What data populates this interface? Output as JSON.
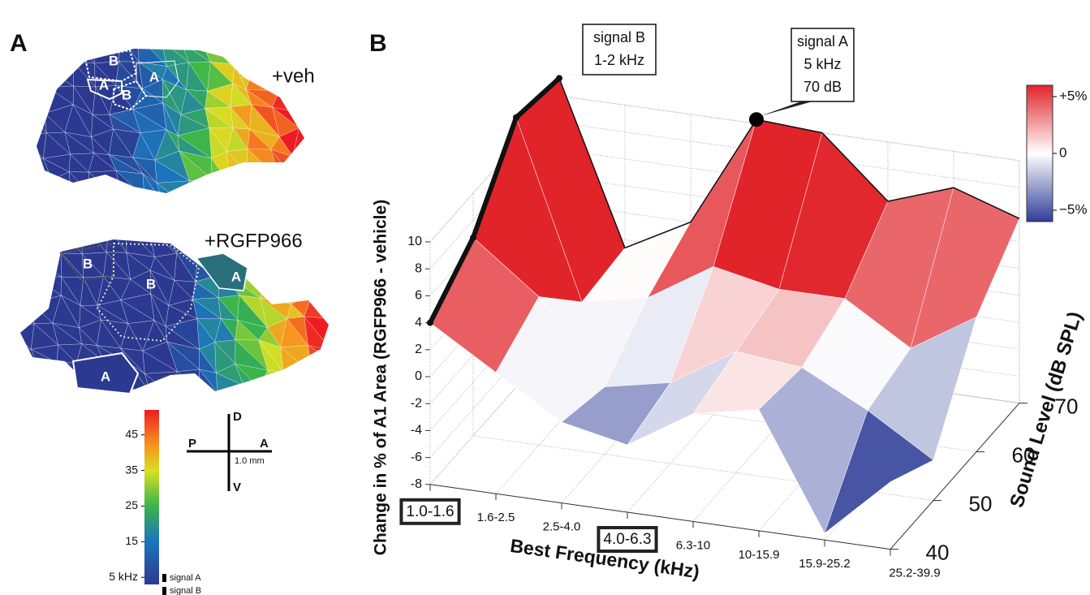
{
  "panel_a": {
    "label": "A",
    "maps": [
      {
        "title": "+veh",
        "regions": [
          "B",
          "A",
          "B",
          "A"
        ]
      },
      {
        "title": "+RGFP966",
        "regions": [
          "B",
          "B",
          "A",
          "A"
        ]
      }
    ],
    "colorbar": {
      "lim": [
        3,
        52
      ],
      "ticks": [
        45,
        35,
        25,
        15,
        {
          "value": 5,
          "label": "5 kHz"
        }
      ],
      "legend": [
        "signal A",
        "signal B"
      ]
    },
    "compass": {
      "dorsal": "D",
      "ventral": "V",
      "posterior": "P",
      "anterior": "A",
      "scale": "1.0 mm"
    }
  },
  "chart_data": {
    "type": "surface3d",
    "panel_label": "B",
    "xlabel": "Best Frequency (kHz)",
    "ylabel": "Sound Level (dB SPL)",
    "zlabel": "Change in % of A1 Area (RGFP966 - vehicle)",
    "categories": [
      "1.0-1.6",
      "1.6-2.5",
      "2.5-4.0",
      "4.0-6.3",
      "6.3-10",
      "10-15.9",
      "15.9-25.2",
      "25.2-39.9"
    ],
    "highlighted_categories": [
      0,
      3
    ],
    "y": [
      40,
      50,
      60,
      70
    ],
    "ylim": [
      40,
      70
    ],
    "yticks": [
      40,
      50,
      60,
      70
    ],
    "zlim": [
      -8,
      10
    ],
    "zticks": [
      -8,
      -6,
      -4,
      -2,
      0,
      2,
      4,
      6,
      8,
      10
    ],
    "values": [
      [
        4,
        1,
        -2,
        -3,
        0,
        1,
        -7.5,
        -3
      ],
      [
        6.7,
        3,
        -3,
        -2,
        1,
        0.5,
        -2,
        -5
      ],
      [
        12,
        -1,
        0,
        3,
        2,
        2,
        -1,
        2
      ],
      [
        11.3,
        -0.6,
        2,
        10.3,
        10,
        5.6,
        7.3,
        5.7
      ]
    ],
    "colorbar": {
      "lim": [
        -6,
        6
      ],
      "ticks": [
        {
          "value": 5,
          "label": "+5%"
        },
        0,
        {
          "value": -5,
          "label": "−5%"
        }
      ]
    },
    "annotations": [
      {
        "lines": [
          "signal B",
          "1-2 kHz"
        ]
      },
      {
        "lines": [
          "signal A",
          "5 kHz",
          "70 dB"
        ]
      }
    ]
  }
}
